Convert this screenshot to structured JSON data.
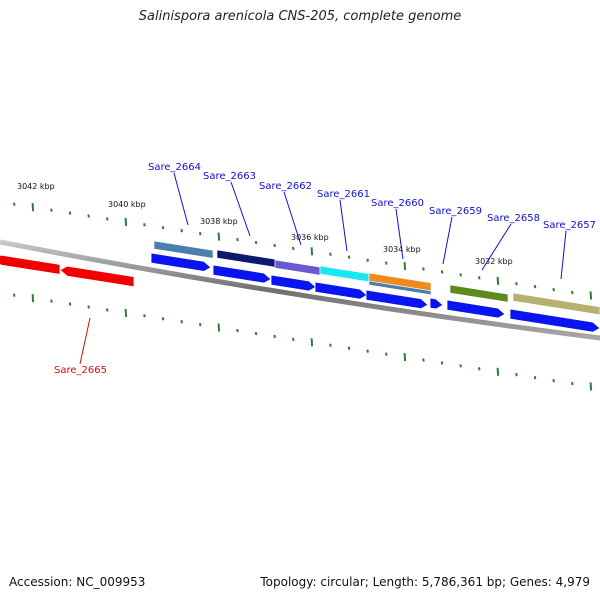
{
  "title": "Salinispora arenicola CNS-205, complete genome",
  "footer": {
    "accession": "Accession: NC_009953",
    "summary": "Topology: circular; Length: 5,786,361 bp; Genes: 4,979"
  },
  "colors": {
    "backbone": "#808080",
    "tick": "#2e7d32",
    "forward_gene": "#0a14f0",
    "reverse_gene": "#f00000",
    "forward_label": "#1010cc",
    "reverse_label": "#cc1010"
  },
  "ticks": {
    "labels": [
      "3042 kbp",
      "3040 kbp",
      "3038 kbp",
      "3036 kbp",
      "3034 kbp",
      "3032 kbp"
    ]
  },
  "features": [
    {
      "label": "Sare_2664",
      "color": "#4a7fb0"
    },
    {
      "label": "Sare_2663",
      "color": "#0c1a6e"
    },
    {
      "label": "Sare_2662",
      "color": "#6a5acd"
    },
    {
      "label": "Sare_2661",
      "color": "#1ae8f0"
    },
    {
      "label": "Sare_2660",
      "color": "#f08a1c"
    },
    {
      "label": "Sare_2659",
      "color": "#4a7fb0"
    },
    {
      "label": "Sare_2658",
      "color": "#5c8a1c"
    },
    {
      "label": "Sare_2657",
      "color": "#b8b070"
    }
  ],
  "reverse_features": [
    {
      "label": "Sare_2665",
      "color": "#f00000"
    }
  ]
}
